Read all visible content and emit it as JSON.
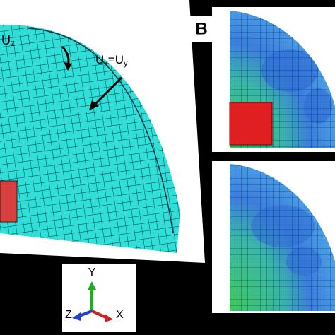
{
  "panel_label": "B",
  "load_label": {
    "base": "U",
    "sub": "z"
  },
  "bc_label": {
    "u1": "U",
    "s1": "x",
    "eq": "=U",
    "s2": "y"
  },
  "axes": {
    "y": "Y",
    "z": "Z",
    "x": "X"
  }
}
